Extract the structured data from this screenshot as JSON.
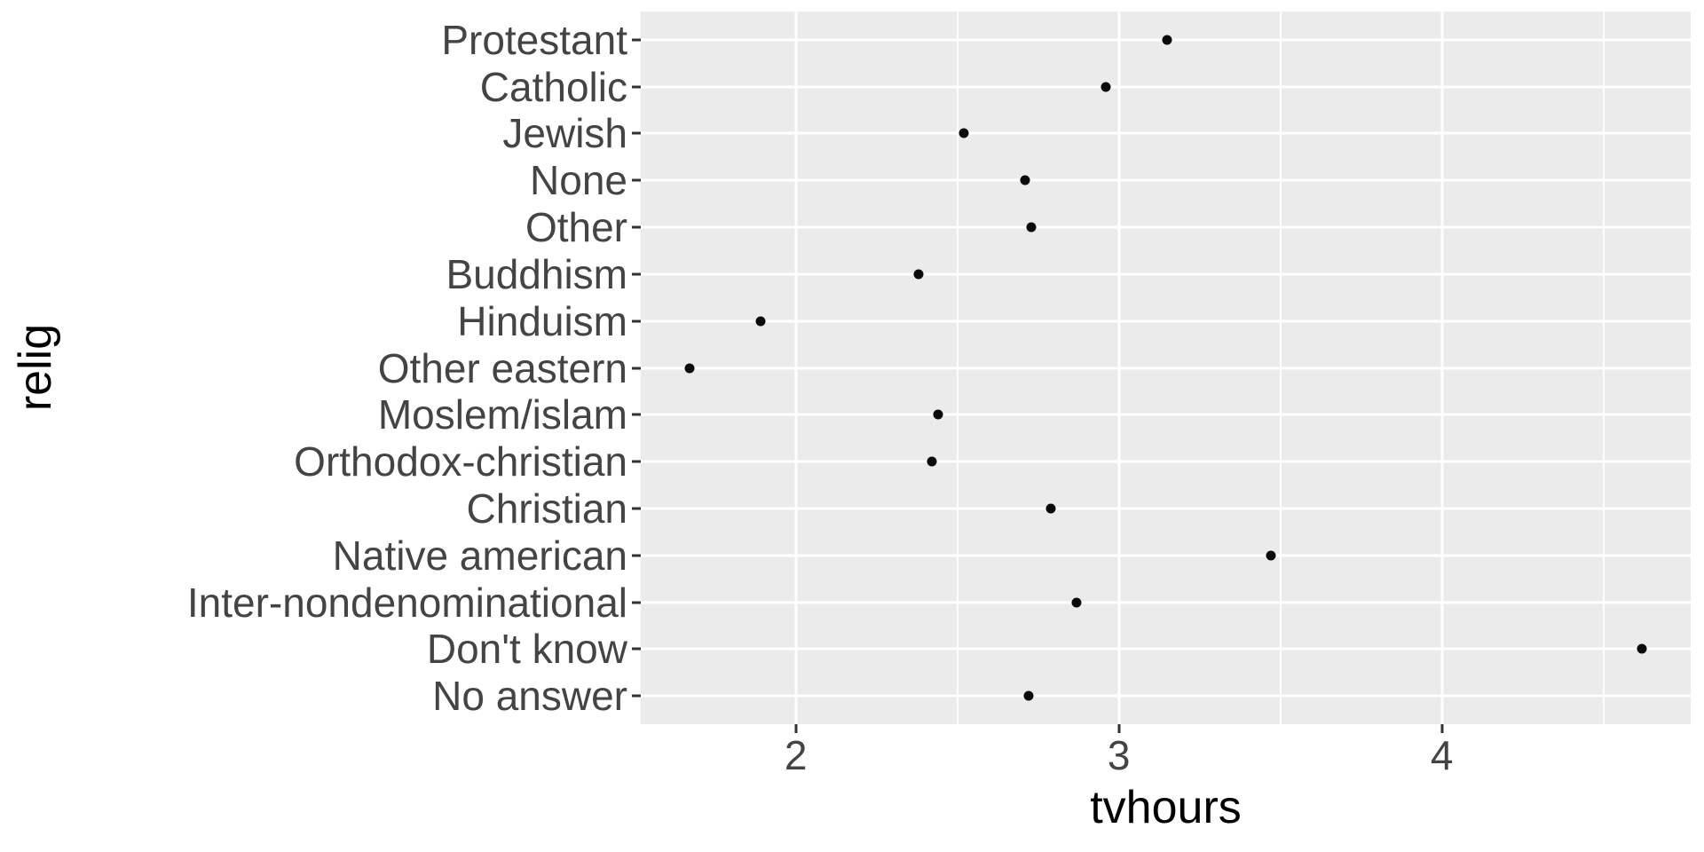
{
  "colors": {
    "panel_bg": "#EBEBEB",
    "grid": "#FFFFFF",
    "point": "#0A0A0A",
    "axis_text": "#444444",
    "axis_title": "#000000",
    "tick_mark": "#333333",
    "page_bg": "#FFFFFF"
  },
  "chart_data": {
    "type": "scatter",
    "subtype": "horizontal-dot-plot",
    "title": "",
    "xlabel": "tvhours",
    "ylabel": "relig",
    "categories": [
      "Protestant",
      "Catholic",
      "Jewish",
      "None",
      "Other",
      "Buddhism",
      "Hinduism",
      "Other eastern",
      "Moslem/islam",
      "Orthodox-christian",
      "Christian",
      "Native american",
      "Inter-nondenominational",
      "Don't know",
      "No answer"
    ],
    "values": [
      3.15,
      2.96,
      2.52,
      2.71,
      2.73,
      2.38,
      1.89,
      1.67,
      2.44,
      2.42,
      2.79,
      3.47,
      2.87,
      4.62,
      2.72
    ],
    "x_ticks": [
      2,
      3,
      4
    ],
    "x_tick_labels": [
      "2",
      "3",
      "4"
    ],
    "x_minor_ticks": [
      2.5,
      3.5,
      4.5
    ],
    "xlim": [
      1.52,
      4.77
    ],
    "grid": true,
    "legend": false
  }
}
